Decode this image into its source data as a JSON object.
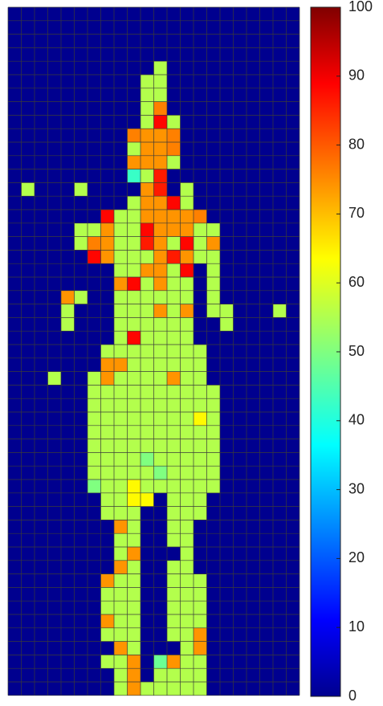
{
  "chart_data": {
    "type": "heatmap",
    "title": "",
    "xlabel": "",
    "ylabel": "",
    "grid": true,
    "colormap": "jet",
    "background_color": "#00008F",
    "grid_color": "#3a3a3a",
    "clim": [
      0,
      100
    ],
    "colorbar": {
      "position": "right",
      "ticks": [
        0,
        10,
        20,
        30,
        40,
        50,
        60,
        70,
        80,
        90,
        100
      ],
      "tick_labels": [
        "0",
        "10",
        "20",
        "30",
        "40",
        "50",
        "60",
        "70",
        "80",
        "90",
        "100"
      ]
    },
    "n_cols": 22,
    "n_rows": 51,
    "fill_value": 0,
    "default_value": 55,
    "cells_note_format": "row index counted from top, col index from left; value in colormap units",
    "values_by_row": {
      "4": {
        "cols": [
          11
        ],
        "values": [
          55
        ]
      },
      "5": {
        "cols": [
          10,
          11
        ],
        "values": [
          55,
          55
        ]
      },
      "6": {
        "cols": [
          10,
          11
        ],
        "values": [
          55,
          55
        ]
      },
      "7": {
        "cols": [
          10,
          11
        ],
        "values": [
          55,
          75
        ]
      },
      "8": {
        "cols": [
          10,
          11,
          12
        ],
        "values": [
          55,
          87,
          55
        ]
      },
      "9": {
        "cols": [
          9,
          10,
          11,
          12
        ],
        "values": [
          75,
          73,
          73,
          75
        ]
      },
      "10": {
        "cols": [
          9,
          10,
          11,
          12
        ],
        "values": [
          55,
          73,
          73,
          75
        ]
      },
      "11": {
        "cols": [
          9,
          10,
          11,
          12
        ],
        "values": [
          73,
          73,
          73,
          55
        ]
      },
      "12": {
        "cols": [
          9,
          10,
          11
        ],
        "values": [
          43,
          55,
          85
        ]
      },
      "13": {
        "cols": [
          1,
          5,
          10,
          11,
          13
        ],
        "values": [
          55,
          55,
          73,
          85,
          55
        ]
      },
      "14": {
        "cols": [
          9,
          10,
          11,
          12,
          13
        ],
        "values": [
          55,
          73,
          73,
          87,
          55
        ]
      },
      "15": {
        "cols": [
          7,
          8,
          9,
          10,
          11,
          12,
          13,
          14
        ],
        "values": [
          87,
          55,
          55,
          73,
          73,
          73,
          73,
          75
        ]
      },
      "16": {
        "cols": [
          5,
          6,
          7,
          8,
          9,
          10,
          11,
          12,
          13,
          14,
          15
        ],
        "values": [
          55,
          55,
          73,
          55,
          55,
          87,
          73,
          73,
          73,
          55,
          55
        ]
      },
      "17": {
        "cols": [
          5,
          6,
          7,
          8,
          9,
          10,
          11,
          12,
          13,
          14,
          15
        ],
        "values": [
          55,
          75,
          73,
          55,
          55,
          85,
          73,
          55,
          87,
          55,
          73
        ]
      },
      "18": {
        "cols": [
          6,
          7,
          8,
          9,
          10,
          11,
          12,
          13,
          14,
          15
        ],
        "values": [
          87,
          73,
          55,
          55,
          55,
          73,
          85,
          73,
          55,
          55
        ]
      },
      "19": {
        "cols": [
          8,
          9,
          10,
          11,
          12,
          13,
          15
        ],
        "values": [
          55,
          55,
          73,
          73,
          55,
          87,
          55
        ]
      },
      "20": {
        "cols": [
          8,
          9,
          10,
          11,
          12,
          13,
          15
        ],
        "values": [
          73,
          87,
          55,
          73,
          55,
          55,
          55
        ]
      },
      "21": {
        "cols": [
          4,
          5,
          8,
          9,
          10,
          11,
          12,
          13,
          15
        ],
        "values": [
          73,
          55,
          55,
          55,
          55,
          55,
          55,
          55,
          55
        ]
      },
      "22": {
        "cols": [
          4,
          8,
          9,
          10,
          11,
          12,
          13,
          15,
          16,
          20
        ],
        "values": [
          55,
          55,
          55,
          55,
          73,
          55,
          73,
          55,
          55,
          55
        ]
      },
      "23": {
        "cols": [
          4,
          8,
          9,
          10,
          11,
          12,
          13,
          16
        ],
        "values": [
          55,
          55,
          55,
          55,
          55,
          55,
          55,
          55
        ]
      },
      "24": {
        "cols": [
          8,
          9,
          10,
          11,
          12,
          13
        ],
        "values": [
          55,
          87,
          55,
          55,
          55,
          55
        ]
      },
      "25": {
        "cols": [
          7,
          8,
          9,
          10,
          11,
          12,
          13,
          14
        ],
        "values": [
          55,
          55,
          55,
          55,
          55,
          55,
          55,
          55
        ]
      },
      "26": {
        "cols": [
          7,
          8,
          9,
          10,
          11,
          12,
          13,
          14
        ],
        "values": [
          73,
          73,
          55,
          55,
          55,
          55,
          55,
          55
        ]
      },
      "27": {
        "cols": [
          3,
          6,
          7,
          8,
          9,
          10,
          11,
          12,
          13,
          14
        ],
        "values": [
          55,
          55,
          73,
          55,
          55,
          55,
          55,
          73,
          55,
          55
        ]
      },
      "28": {
        "cols": [
          6,
          7,
          8,
          9,
          10,
          11,
          12,
          13,
          14,
          15
        ],
        "values": [
          55,
          55,
          55,
          55,
          55,
          55,
          55,
          55,
          55,
          55
        ]
      },
      "29": {
        "cols": [
          6,
          7,
          8,
          9,
          10,
          11,
          12,
          13,
          14,
          15
        ],
        "values": [
          55,
          55,
          55,
          55,
          55,
          55,
          55,
          55,
          55,
          55
        ]
      },
      "30": {
        "cols": [
          6,
          7,
          8,
          9,
          10,
          11,
          12,
          13,
          14,
          15
        ],
        "values": [
          55,
          55,
          55,
          55,
          55,
          55,
          55,
          55,
          63,
          55
        ]
      },
      "31": {
        "cols": [
          6,
          7,
          8,
          9,
          10,
          11,
          12,
          13,
          14,
          15
        ],
        "values": [
          55,
          55,
          55,
          55,
          55,
          55,
          55,
          55,
          55,
          55
        ]
      },
      "32": {
        "cols": [
          6,
          7,
          8,
          9,
          10,
          11,
          12,
          13,
          14,
          15
        ],
        "values": [
          55,
          55,
          55,
          55,
          55,
          55,
          55,
          55,
          55,
          55
        ]
      },
      "33": {
        "cols": [
          6,
          7,
          8,
          9,
          10,
          11,
          12,
          13,
          14,
          15
        ],
        "values": [
          55,
          55,
          55,
          55,
          50,
          55,
          55,
          55,
          55,
          55
        ]
      },
      "34": {
        "cols": [
          6,
          7,
          8,
          9,
          10,
          11,
          12,
          13,
          14,
          15
        ],
        "values": [
          55,
          55,
          55,
          55,
          55,
          50,
          55,
          55,
          55,
          55
        ]
      },
      "35": {
        "cols": [
          6,
          7,
          8,
          9,
          10,
          11,
          12,
          13,
          14,
          15
        ],
        "values": [
          50,
          55,
          55,
          63,
          55,
          55,
          55,
          55,
          55,
          55
        ]
      },
      "36": {
        "cols": [
          7,
          8,
          9,
          10,
          12,
          13,
          14
        ],
        "values": [
          55,
          55,
          63,
          63,
          55,
          55,
          55
        ]
      },
      "37": {
        "cols": [
          7,
          8,
          9,
          12,
          13,
          14
        ],
        "values": [
          55,
          55,
          55,
          55,
          55,
          55
        ]
      },
      "38": {
        "cols": [
          8,
          9,
          12,
          13
        ],
        "values": [
          73,
          55,
          55,
          55
        ]
      },
      "39": {
        "cols": [
          8,
          9,
          12,
          13
        ],
        "values": [
          55,
          55,
          55,
          55
        ]
      },
      "40": {
        "cols": [
          8,
          9,
          13
        ],
        "values": [
          55,
          73,
          55
        ]
      },
      "41": {
        "cols": [
          8,
          9,
          12,
          13
        ],
        "values": [
          73,
          55,
          55,
          55
        ]
      },
      "42": {
        "cols": [
          7,
          8,
          9,
          12,
          13,
          14
        ],
        "values": [
          73,
          55,
          55,
          55,
          55,
          55
        ]
      },
      "43": {
        "cols": [
          7,
          8,
          9,
          12,
          13,
          14
        ],
        "values": [
          55,
          55,
          55,
          55,
          55,
          55
        ]
      },
      "44": {
        "cols": [
          7,
          8,
          9,
          12,
          13,
          14
        ],
        "values": [
          55,
          55,
          55,
          55,
          55,
          55
        ]
      },
      "45": {
        "cols": [
          7,
          8,
          9,
          12,
          13,
          14
        ],
        "values": [
          73,
          55,
          55,
          55,
          55,
          55
        ]
      },
      "46": {
        "cols": [
          7,
          8,
          9,
          12,
          13,
          14
        ],
        "values": [
          55,
          55,
          55,
          55,
          55,
          73
        ]
      },
      "47": {
        "cols": [
          8,
          9,
          13,
          14
        ],
        "values": [
          73,
          55,
          55,
          73
        ]
      },
      "48": {
        "cols": [
          7,
          8,
          9,
          11,
          12,
          13,
          14
        ],
        "values": [
          55,
          55,
          73,
          48,
          73,
          55,
          55
        ]
      },
      "49": {
        "cols": [
          8,
          9,
          11,
          12,
          13,
          14
        ],
        "values": [
          55,
          73,
          55,
          55,
          55,
          55
        ]
      },
      "50": {
        "cols": [
          8,
          9,
          10,
          11,
          12,
          13,
          14
        ],
        "values": [
          55,
          73,
          55,
          55,
          55,
          55,
          55
        ]
      }
    }
  }
}
